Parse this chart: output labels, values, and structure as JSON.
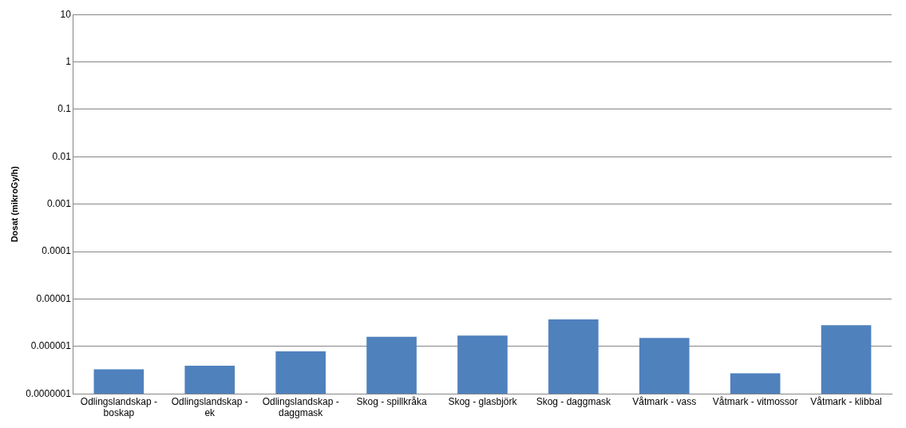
{
  "chart_data": {
    "type": "bar",
    "ylabel": "Dosat (mikroGy/h)",
    "categories": [
      "Odlingslandskap - boskap",
      "Odlingslandskap - ek",
      "Odlingslandskap - daggmask",
      "Skog - spillkråka",
      "Skog - glasbjörk",
      "Skog - daggmask",
      "Våtmark - vass",
      "Våtmark - vitmossor",
      "Våtmark - klibbal"
    ],
    "values": [
      3.3e-07,
      3.9e-07,
      7.9e-07,
      1.6e-06,
      1.7e-06,
      3.7e-06,
      1.5e-06,
      2.7e-07,
      2.8e-06
    ],
    "color": "#4f81bd",
    "log": true,
    "ylim": [
      1e-07,
      10
    ],
    "yticks": [
      {
        "value": 1e-07,
        "label": "0.0000001"
      },
      {
        "value": 1e-06,
        "label": "0.000001"
      },
      {
        "value": 1e-05,
        "label": "0.00001"
      },
      {
        "value": 0.0001,
        "label": "0.0001"
      },
      {
        "value": 0.001,
        "label": "0.001"
      },
      {
        "value": 0.01,
        "label": "0.01"
      },
      {
        "value": 0.1,
        "label": "0.1"
      },
      1,
      10
    ],
    "grid": "y",
    "legend": false
  }
}
